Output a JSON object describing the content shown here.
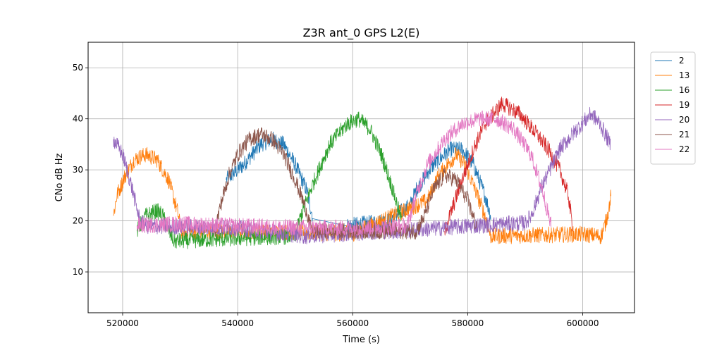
{
  "chart_data": {
    "type": "line",
    "title": "Z3R ant_0 GPS L2(E)",
    "xlabel": "Time (s)",
    "ylabel": "CNo dB Hz",
    "xlim": [
      514000,
      609000
    ],
    "ylim": [
      2,
      55
    ],
    "xticks": [
      520000,
      540000,
      560000,
      580000,
      600000
    ],
    "xtick_labels": [
      "520000",
      "540000",
      "560000",
      "580000",
      "600000"
    ],
    "yticks": [
      10,
      20,
      30,
      40,
      50
    ],
    "ytick_labels": [
      "10",
      "20",
      "30",
      "40",
      "50"
    ],
    "grid": true,
    "legend_placement": "outside-right-top",
    "series": [
      {
        "name": "2",
        "color": "#1f77b4",
        "points": [
          [
            538000,
            28
          ],
          [
            541000,
            31
          ],
          [
            544000,
            35
          ],
          [
            546000,
            36
          ],
          [
            548000,
            35
          ],
          [
            550000,
            31
          ],
          [
            552000,
            26
          ],
          [
            553000,
            21
          ],
          [
            559000,
            19
          ],
          [
            566000,
            20
          ],
          [
            570000,
            23
          ],
          [
            571000,
            26
          ],
          [
            574000,
            31
          ],
          [
            577000,
            34
          ],
          [
            579000,
            34
          ],
          [
            581000,
            31
          ],
          [
            583000,
            25
          ],
          [
            584000,
            21
          ]
        ],
        "breaks": [
          [
            553000,
            559000
          ]
        ]
      },
      {
        "name": "13",
        "color": "#ff7f0e",
        "points": [
          [
            518400,
            21
          ],
          [
            519000,
            25
          ],
          [
            520500,
            29
          ],
          [
            522000,
            32
          ],
          [
            524000,
            33
          ],
          [
            526000,
            32
          ],
          [
            528000,
            28
          ],
          [
            529500,
            22
          ],
          [
            530200,
            18
          ],
          [
            540000,
            18
          ],
          [
            560000,
            17.5
          ],
          [
            573000,
            24
          ],
          [
            575000,
            29
          ],
          [
            578000,
            33
          ],
          [
            579500,
            31
          ],
          [
            581000,
            27
          ],
          [
            583000,
            21
          ],
          [
            584000,
            17
          ],
          [
            600000,
            17.4
          ],
          [
            603200,
            17
          ],
          [
            603800,
            19
          ],
          [
            604500,
            22
          ],
          [
            604900,
            25
          ]
        ],
        "breaks": [
          [
            530200,
            573000
          ],
          [
            584000,
            603200
          ]
        ]
      },
      {
        "name": "16",
        "color": "#2ca02c",
        "points": [
          [
            522500,
            18
          ],
          [
            524000,
            21
          ],
          [
            526000,
            22
          ],
          [
            527000,
            21
          ],
          [
            528000,
            18
          ],
          [
            529000,
            16
          ],
          [
            540000,
            16.6
          ],
          [
            550000,
            17
          ],
          [
            551000,
            21
          ],
          [
            553000,
            27
          ],
          [
            556000,
            35
          ],
          [
            559000,
            39
          ],
          [
            561000,
            40
          ],
          [
            563000,
            38
          ],
          [
            565000,
            33
          ],
          [
            567000,
            26
          ],
          [
            568500,
            20
          ]
        ],
        "breaks": [
          [
            529000,
            550000
          ]
        ]
      },
      {
        "name": "19",
        "color": "#d62728",
        "points": [
          [
            576000,
            18
          ],
          [
            577500,
            23
          ],
          [
            579000,
            28
          ],
          [
            581000,
            34
          ],
          [
            583000,
            39
          ],
          [
            586000,
            43
          ],
          [
            589000,
            41
          ],
          [
            592000,
            37
          ],
          [
            594000,
            34
          ],
          [
            596000,
            30
          ],
          [
            597500,
            25
          ],
          [
            598200,
            19
          ]
        ]
      },
      {
        "name": "20",
        "color": "#9467bd",
        "points": [
          [
            518400,
            36
          ],
          [
            520000,
            33
          ],
          [
            521500,
            27
          ],
          [
            523000,
            20
          ],
          [
            524000,
            19
          ],
          [
            540000,
            18.6
          ],
          [
            552000,
            17
          ],
          [
            565000,
            18
          ],
          [
            568000,
            18
          ],
          [
            580000,
            19
          ],
          [
            590000,
            19.6
          ],
          [
            591000,
            21
          ],
          [
            593000,
            27
          ],
          [
            596000,
            34
          ],
          [
            599000,
            38
          ],
          [
            601500,
            41
          ],
          [
            603000,
            39
          ],
          [
            604800,
            35
          ]
        ],
        "breaks": [
          [
            524000,
            565000
          ]
        ]
      },
      {
        "name": "21",
        "color": "#8c564b",
        "points": [
          [
            536000,
            18
          ],
          [
            537000,
            23
          ],
          [
            538500,
            29
          ],
          [
            540000,
            33
          ],
          [
            542000,
            36
          ],
          [
            544000,
            37
          ],
          [
            546000,
            36
          ],
          [
            548000,
            33
          ],
          [
            550000,
            28
          ],
          [
            552000,
            22
          ],
          [
            552800,
            18
          ],
          [
            560000,
            18
          ],
          [
            571000,
            18
          ],
          [
            572500,
            21
          ],
          [
            574000,
            26
          ],
          [
            576000,
            29
          ],
          [
            578000,
            28
          ],
          [
            580000,
            24
          ],
          [
            581500,
            19
          ]
        ],
        "breaks": [
          [
            552800,
            571000
          ]
        ]
      },
      {
        "name": "22",
        "color": "#e377c2",
        "points": [
          [
            522500,
            19
          ],
          [
            524000,
            19.2
          ],
          [
            530000,
            19.4
          ],
          [
            540000,
            19
          ],
          [
            550000,
            18.7
          ],
          [
            560000,
            18.6
          ],
          [
            569500,
            19
          ],
          [
            571000,
            25
          ],
          [
            573000,
            31
          ],
          [
            576000,
            36
          ],
          [
            579000,
            39
          ],
          [
            582000,
            40
          ],
          [
            585000,
            40
          ],
          [
            588000,
            38
          ],
          [
            591000,
            33
          ],
          [
            593000,
            26
          ],
          [
            594500,
            19
          ]
        ],
        "breaks": [
          [
            522500,
            569500
          ]
        ]
      }
    ]
  }
}
